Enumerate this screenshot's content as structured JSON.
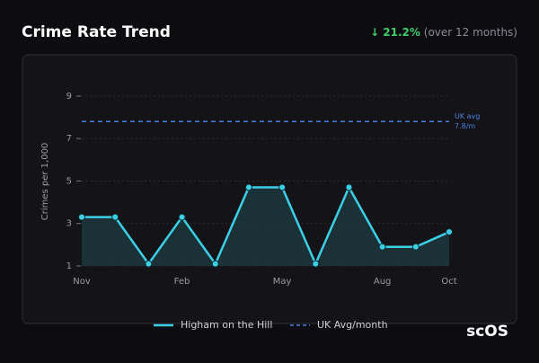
{
  "chart_data": {
    "type": "line",
    "title": "Crime Rate Trend",
    "annotations": [
      "↓ 21.2%",
      "(over 12 months)"
    ],
    "categories": [
      "Nov",
      null,
      null,
      "Feb",
      null,
      null,
      "May",
      null,
      null,
      "Aug",
      null,
      "Oct"
    ],
    "series": [
      {
        "name": "Higham on the Hill",
        "color": "#3ccfe6",
        "values": [
          3.3,
          3.3,
          1.1,
          3.3,
          1.1,
          4.7,
          4.7,
          1.1,
          4.7,
          1.9,
          1.9,
          2.6
        ]
      }
    ],
    "reference": {
      "name": "UK Avg/month",
      "value": 7.8,
      "color": "#4a7fe0",
      "label": [
        "UK avg",
        "7.8/m"
      ]
    },
    "ylabel": "Crimes per 1,000",
    "ylim": [
      1,
      9.8
    ],
    "yticks": [
      1,
      3,
      5,
      7,
      9
    ],
    "grid": true
  },
  "brand": "scOS"
}
